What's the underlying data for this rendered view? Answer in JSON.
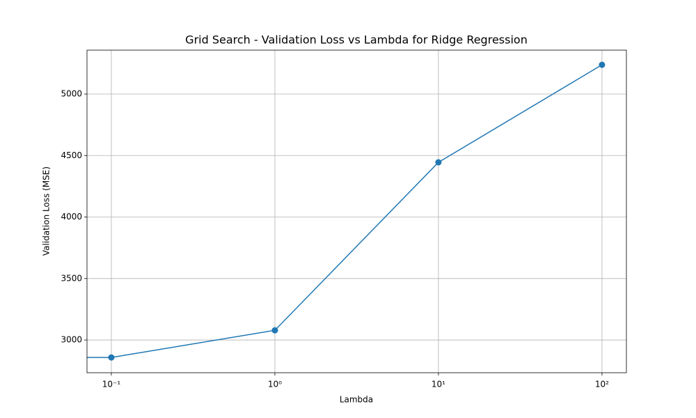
{
  "chart_data": {
    "type": "line",
    "title": "Grid Search - Validation Loss vs Lambda for Ridge Regression",
    "x_label": "Lambda",
    "y_label": "Validation Loss (MSE)",
    "x": [
      0.01,
      0.1,
      1,
      10,
      100
    ],
    "series": [
      {
        "name": "Validation Loss",
        "color": "#1f77b4",
        "values": [
          2858,
          2858,
          3079,
          4445,
          5238
        ]
      }
    ],
    "x_scale": "log",
    "xlim": [
      0.071,
      141
    ],
    "ylim": [
      2734,
      5357
    ],
    "xticks": [
      {
        "value": 0.1,
        "label": "10⁻¹"
      },
      {
        "value": 1,
        "label": "10⁰"
      },
      {
        "value": 10,
        "label": "10¹"
      },
      {
        "value": 100,
        "label": "10²"
      }
    ],
    "yticks": [
      3000,
      3500,
      4000,
      4500,
      5000
    ],
    "grid": true
  }
}
